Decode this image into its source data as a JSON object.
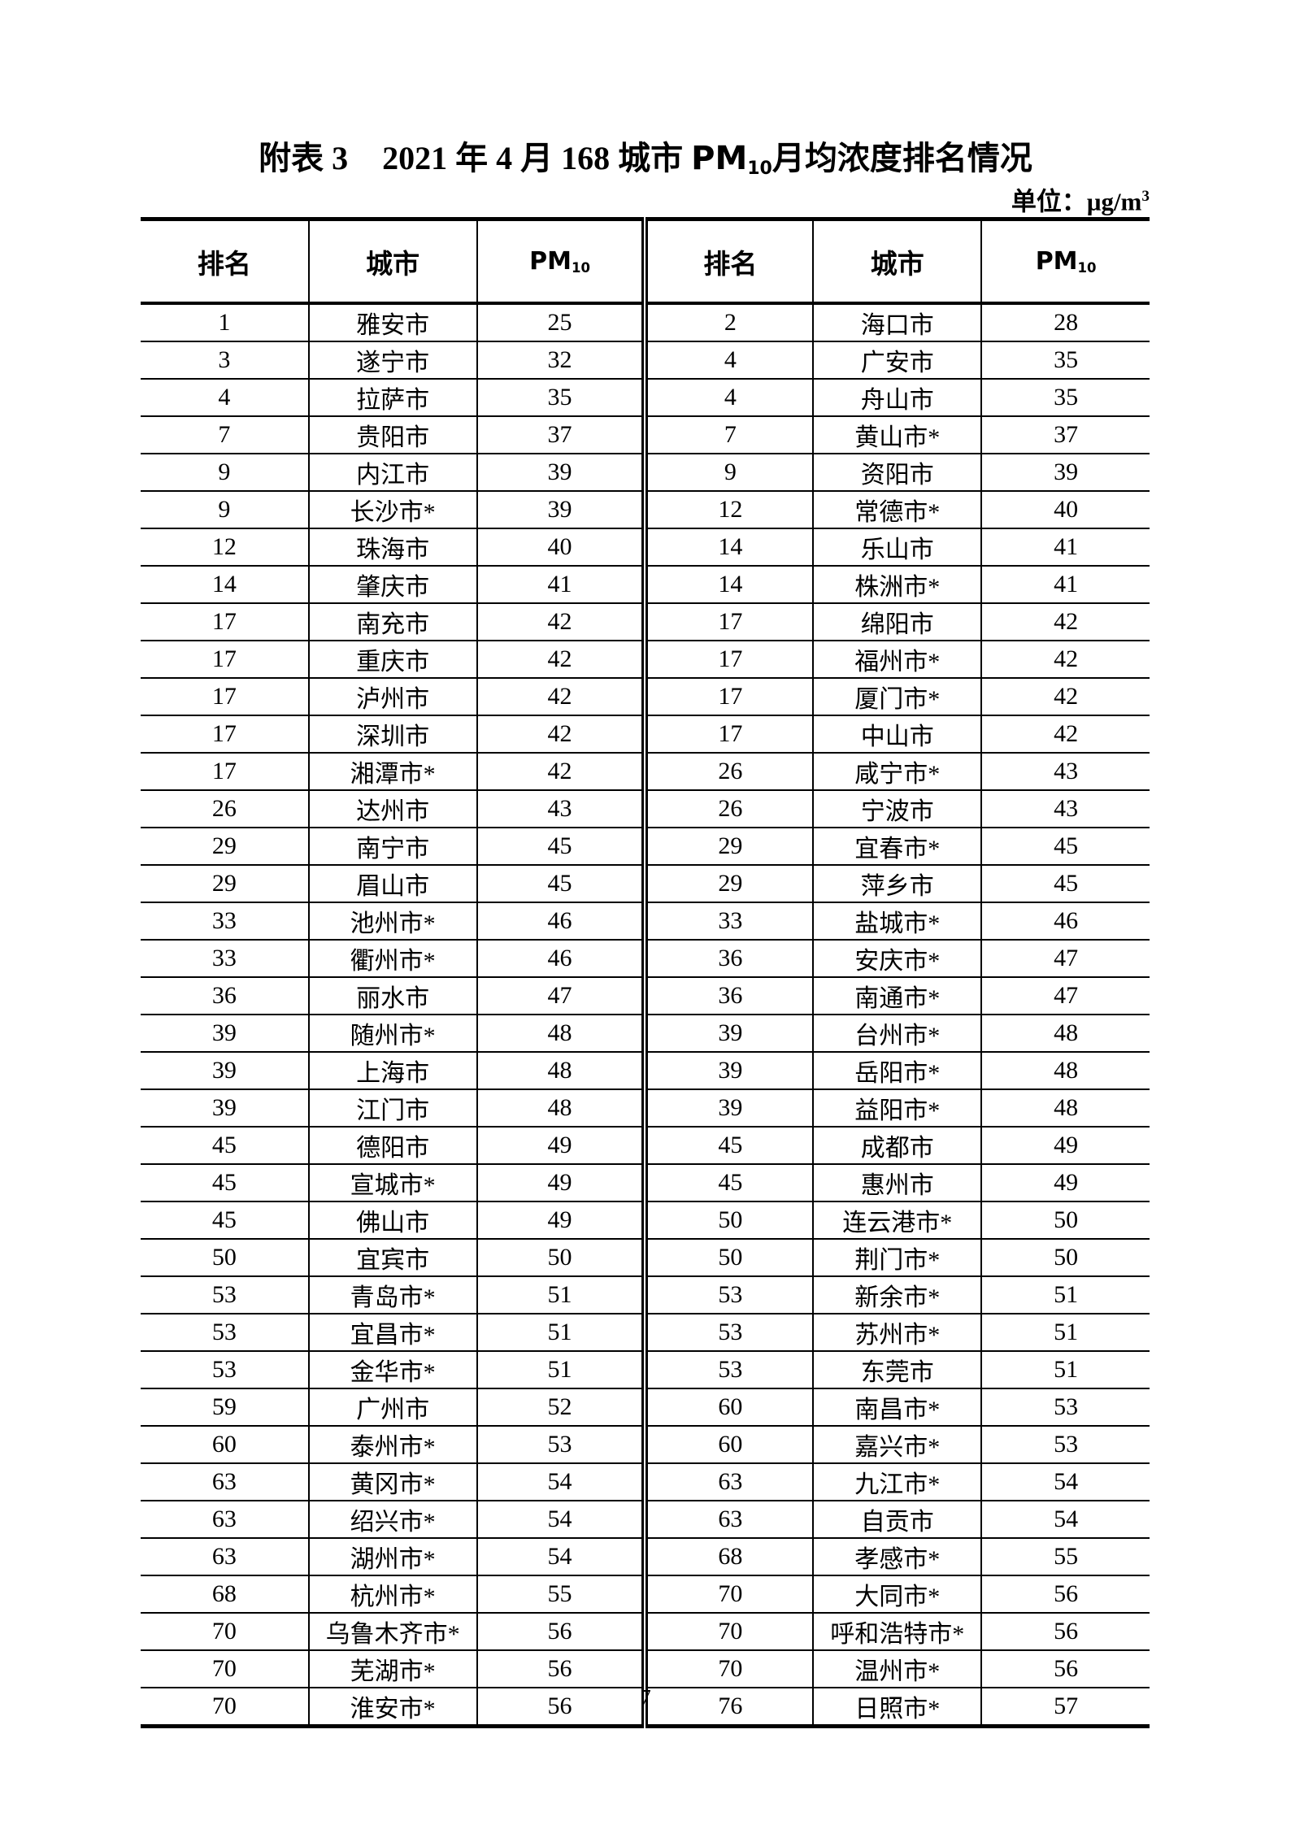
{
  "document": {
    "title": {
      "label": "附表 3",
      "pre": "2021 年 4 月 168 城市 ",
      "pm_base": "PM",
      "pm_sub": "10",
      "post": "月均浓度排名情况"
    },
    "unit": {
      "label": "单位：",
      "base": "μg/m",
      "sup": "3"
    },
    "page_number": "7"
  },
  "table": {
    "header": {
      "rank": "排名",
      "city": "城市",
      "pm_base": "PM",
      "pm_sub": "10"
    },
    "rows": [
      {
        "l_rank": "1",
        "l_city": "雅安市",
        "l_pm": "25",
        "r_rank": "2",
        "r_city": "海口市",
        "r_pm": "28"
      },
      {
        "l_rank": "3",
        "l_city": "遂宁市",
        "l_pm": "32",
        "r_rank": "4",
        "r_city": "广安市",
        "r_pm": "35"
      },
      {
        "l_rank": "4",
        "l_city": "拉萨市",
        "l_pm": "35",
        "r_rank": "4",
        "r_city": "舟山市",
        "r_pm": "35"
      },
      {
        "l_rank": "7",
        "l_city": "贵阳市",
        "l_pm": "37",
        "r_rank": "7",
        "r_city": "黄山市*",
        "r_pm": "37"
      },
      {
        "l_rank": "9",
        "l_city": "内江市",
        "l_pm": "39",
        "r_rank": "9",
        "r_city": "资阳市",
        "r_pm": "39"
      },
      {
        "l_rank": "9",
        "l_city": "长沙市*",
        "l_pm": "39",
        "r_rank": "12",
        "r_city": "常德市*",
        "r_pm": "40"
      },
      {
        "l_rank": "12",
        "l_city": "珠海市",
        "l_pm": "40",
        "r_rank": "14",
        "r_city": "乐山市",
        "r_pm": "41"
      },
      {
        "l_rank": "14",
        "l_city": "肇庆市",
        "l_pm": "41",
        "r_rank": "14",
        "r_city": "株洲市*",
        "r_pm": "41"
      },
      {
        "l_rank": "17",
        "l_city": "南充市",
        "l_pm": "42",
        "r_rank": "17",
        "r_city": "绵阳市",
        "r_pm": "42"
      },
      {
        "l_rank": "17",
        "l_city": "重庆市",
        "l_pm": "42",
        "r_rank": "17",
        "r_city": "福州市*",
        "r_pm": "42"
      },
      {
        "l_rank": "17",
        "l_city": "泸州市",
        "l_pm": "42",
        "r_rank": "17",
        "r_city": "厦门市*",
        "r_pm": "42"
      },
      {
        "l_rank": "17",
        "l_city": "深圳市",
        "l_pm": "42",
        "r_rank": "17",
        "r_city": "中山市",
        "r_pm": "42"
      },
      {
        "l_rank": "17",
        "l_city": "湘潭市*",
        "l_pm": "42",
        "r_rank": "26",
        "r_city": "咸宁市*",
        "r_pm": "43"
      },
      {
        "l_rank": "26",
        "l_city": "达州市",
        "l_pm": "43",
        "r_rank": "26",
        "r_city": "宁波市",
        "r_pm": "43"
      },
      {
        "l_rank": "29",
        "l_city": "南宁市",
        "l_pm": "45",
        "r_rank": "29",
        "r_city": "宜春市*",
        "r_pm": "45"
      },
      {
        "l_rank": "29",
        "l_city": "眉山市",
        "l_pm": "45",
        "r_rank": "29",
        "r_city": "萍乡市",
        "r_pm": "45"
      },
      {
        "l_rank": "33",
        "l_city": "池州市*",
        "l_pm": "46",
        "r_rank": "33",
        "r_city": "盐城市*",
        "r_pm": "46"
      },
      {
        "l_rank": "33",
        "l_city": "衢州市*",
        "l_pm": "46",
        "r_rank": "36",
        "r_city": "安庆市*",
        "r_pm": "47"
      },
      {
        "l_rank": "36",
        "l_city": "丽水市",
        "l_pm": "47",
        "r_rank": "36",
        "r_city": "南通市*",
        "r_pm": "47"
      },
      {
        "l_rank": "39",
        "l_city": "随州市*",
        "l_pm": "48",
        "r_rank": "39",
        "r_city": "台州市*",
        "r_pm": "48"
      },
      {
        "l_rank": "39",
        "l_city": "上海市",
        "l_pm": "48",
        "r_rank": "39",
        "r_city": "岳阳市*",
        "r_pm": "48"
      },
      {
        "l_rank": "39",
        "l_city": "江门市",
        "l_pm": "48",
        "r_rank": "39",
        "r_city": "益阳市*",
        "r_pm": "48"
      },
      {
        "l_rank": "45",
        "l_city": "德阳市",
        "l_pm": "49",
        "r_rank": "45",
        "r_city": "成都市",
        "r_pm": "49"
      },
      {
        "l_rank": "45",
        "l_city": "宣城市*",
        "l_pm": "49",
        "r_rank": "45",
        "r_city": "惠州市",
        "r_pm": "49"
      },
      {
        "l_rank": "45",
        "l_city": "佛山市",
        "l_pm": "49",
        "r_rank": "50",
        "r_city": "连云港市*",
        "r_pm": "50"
      },
      {
        "l_rank": "50",
        "l_city": "宜宾市",
        "l_pm": "50",
        "r_rank": "50",
        "r_city": "荆门市*",
        "r_pm": "50"
      },
      {
        "l_rank": "53",
        "l_city": "青岛市*",
        "l_pm": "51",
        "r_rank": "53",
        "r_city": "新余市*",
        "r_pm": "51"
      },
      {
        "l_rank": "53",
        "l_city": "宜昌市*",
        "l_pm": "51",
        "r_rank": "53",
        "r_city": "苏州市*",
        "r_pm": "51"
      },
      {
        "l_rank": "53",
        "l_city": "金华市*",
        "l_pm": "51",
        "r_rank": "53",
        "r_city": "东莞市",
        "r_pm": "51"
      },
      {
        "l_rank": "59",
        "l_city": "广州市",
        "l_pm": "52",
        "r_rank": "60",
        "r_city": "南昌市*",
        "r_pm": "53"
      },
      {
        "l_rank": "60",
        "l_city": "泰州市*",
        "l_pm": "53",
        "r_rank": "60",
        "r_city": "嘉兴市*",
        "r_pm": "53"
      },
      {
        "l_rank": "63",
        "l_city": "黄冈市*",
        "l_pm": "54",
        "r_rank": "63",
        "r_city": "九江市*",
        "r_pm": "54"
      },
      {
        "l_rank": "63",
        "l_city": "绍兴市*",
        "l_pm": "54",
        "r_rank": "63",
        "r_city": "自贡市",
        "r_pm": "54"
      },
      {
        "l_rank": "63",
        "l_city": "湖州市*",
        "l_pm": "54",
        "r_rank": "68",
        "r_city": "孝感市*",
        "r_pm": "55"
      },
      {
        "l_rank": "68",
        "l_city": "杭州市*",
        "l_pm": "55",
        "r_rank": "70",
        "r_city": "大同市*",
        "r_pm": "56"
      },
      {
        "l_rank": "70",
        "l_city": "乌鲁木齐市*",
        "l_pm": "56",
        "r_rank": "70",
        "r_city": "呼和浩特市*",
        "r_pm": "56"
      },
      {
        "l_rank": "70",
        "l_city": "芜湖市*",
        "l_pm": "56",
        "r_rank": "70",
        "r_city": "温州市*",
        "r_pm": "56"
      },
      {
        "l_rank": "70",
        "l_city": "淮安市*",
        "l_pm": "56",
        "r_rank": "76",
        "r_city": "日照市*",
        "r_pm": "57"
      }
    ]
  }
}
